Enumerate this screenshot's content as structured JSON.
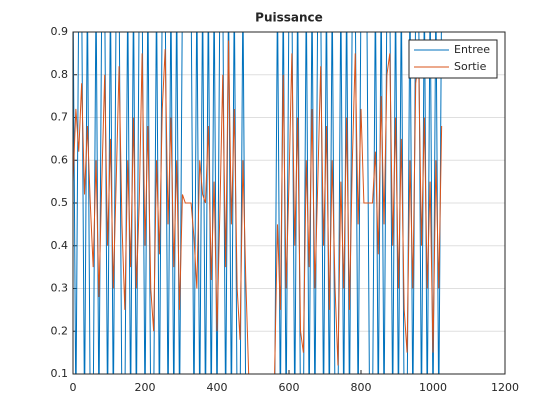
{
  "chart_data": {
    "type": "line",
    "title": "Puissance",
    "x": [
      0,
      8,
      16,
      24,
      32,
      40,
      48,
      56,
      64,
      72,
      80,
      88,
      96,
      104,
      112,
      120,
      128,
      136,
      144,
      152,
      160,
      168,
      176,
      184,
      192,
      200,
      208,
      216,
      224,
      232,
      240,
      248,
      256,
      264,
      272,
      280,
      288,
      296,
      304,
      312,
      320,
      328,
      336,
      344,
      352,
      360,
      368,
      376,
      384,
      392,
      400,
      408,
      416,
      424,
      432,
      440,
      448,
      456,
      464,
      472,
      480,
      488,
      496,
      504,
      512,
      520,
      528,
      536,
      544,
      552,
      560,
      568,
      576,
      584,
      592,
      600,
      608,
      616,
      624,
      632,
      640,
      648,
      656,
      664,
      672,
      680,
      688,
      696,
      704,
      712,
      720,
      728,
      736,
      744,
      752,
      760,
      768,
      776,
      784,
      792,
      800,
      808,
      816,
      824,
      832,
      840,
      848,
      856,
      864,
      872,
      880,
      888,
      896,
      904,
      912,
      920,
      928,
      936,
      944,
      952,
      960,
      968,
      976,
      984,
      992,
      1000,
      1008,
      1016,
      1024
    ],
    "series": [
      {
        "name": "Entree",
        "color": "#0072BD",
        "values": [
          1,
          0,
          1,
          1,
          0,
          1,
          0,
          0,
          1,
          0,
          1,
          1,
          0,
          1,
          0,
          1,
          1,
          0,
          0,
          1,
          0,
          1,
          0,
          1,
          1,
          0,
          1,
          0,
          0,
          1,
          0,
          1,
          1,
          0,
          1,
          0,
          1,
          0,
          1,
          1,
          1,
          1,
          0,
          1,
          0,
          1,
          0,
          1,
          0,
          1,
          0,
          1,
          1,
          0,
          1,
          0,
          1,
          0,
          0,
          1,
          0,
          0,
          0,
          0,
          0,
          0,
          0,
          0,
          0,
          0,
          0,
          1,
          0,
          1,
          0,
          1,
          1,
          0,
          1,
          0,
          0,
          1,
          0,
          1,
          0,
          1,
          1,
          0,
          1,
          0,
          1,
          0,
          0,
          1,
          0,
          1,
          0,
          1,
          1,
          0,
          1,
          1,
          1,
          0,
          0,
          1,
          0,
          1,
          0,
          1,
          1,
          0,
          1,
          0,
          1,
          0,
          0,
          1,
          0,
          1,
          1,
          0,
          1,
          0,
          1,
          0,
          1,
          0,
          1
        ]
      },
      {
        "name": "Sortie",
        "color": "#D95319",
        "values": [
          0.55,
          0.72,
          0.62,
          0.78,
          0.52,
          0.68,
          0.5,
          0.35,
          0.6,
          0.28,
          0.55,
          0.8,
          0.4,
          0.65,
          0.3,
          0.55,
          0.82,
          0.45,
          0.25,
          0.6,
          0.35,
          0.7,
          0.3,
          0.5,
          0.85,
          0.4,
          0.68,
          0.3,
          0.2,
          0.6,
          0.38,
          0.72,
          0.86,
          0.45,
          0.7,
          0.35,
          0.6,
          0.25,
          0.52,
          0.5,
          0.5,
          0.5,
          0.42,
          0.3,
          0.6,
          0.52,
          0.5,
          0.68,
          0.32,
          0.55,
          0.2,
          0.48,
          0.8,
          0.35,
          0.88,
          0.45,
          0.72,
          0.3,
          0.18,
          0.6,
          0.32,
          0.1,
          0.1,
          0.1,
          0.1,
          0.1,
          0.1,
          0.1,
          0.1,
          0.1,
          0.1,
          0.45,
          0.25,
          0.8,
          0.3,
          0.55,
          0.85,
          0.4,
          0.7,
          0.2,
          0.15,
          0.6,
          0.35,
          0.72,
          0.3,
          0.55,
          0.82,
          0.4,
          0.68,
          0.25,
          0.6,
          0.3,
          0.12,
          0.55,
          0.3,
          0.7,
          0.25,
          0.6,
          0.85,
          0.45,
          0.72,
          0.5,
          0.5,
          0.5,
          0.5,
          0.62,
          0.38,
          0.75,
          0.45,
          0.8,
          0.85,
          0.4,
          0.7,
          0.3,
          0.65,
          0.25,
          0.15,
          0.6,
          0.3,
          0.78,
          0.84,
          0.4,
          0.7,
          0.3,
          0.55,
          0.15,
          0.6,
          0.3,
          0.68
        ]
      }
    ],
    "xlim": [
      0,
      1200
    ],
    "xticks": [
      0,
      200,
      400,
      600,
      800,
      1000,
      1200
    ],
    "ylim": [
      0.1,
      0.9
    ],
    "yticks": [
      0.1,
      0.2,
      0.3,
      0.4,
      0.5,
      0.6,
      0.7,
      0.8,
      0.9
    ],
    "grid": "y",
    "legend": "northeast"
  }
}
